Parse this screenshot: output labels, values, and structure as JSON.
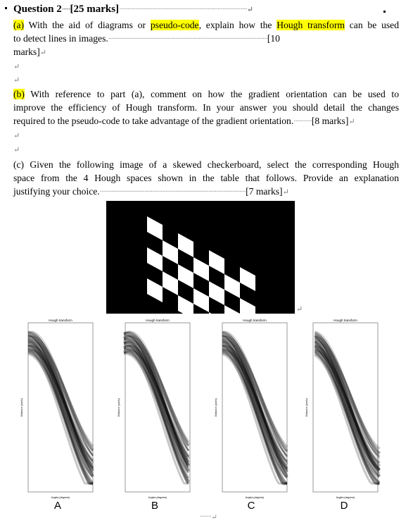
{
  "question": {
    "title": "Question 2",
    "marks": "[25 marks]"
  },
  "part_a": {
    "label": "(a)",
    "text_1": " With the aid of diagrams or ",
    "highlight_1": "pseudo-code",
    "text_2": ", explain how the ",
    "highlight_2": "Hough transform",
    "text_3": " can be used",
    "line2": "to detect lines in images.",
    "marks_a": "[10",
    "marks_b": "marks]"
  },
  "part_b": {
    "label": "(b)",
    "line1": " With reference to part (a), comment on how the gradient orientation can be used to",
    "line2": "improve the efficiency of Hough transform. In your answer you should detail the changes",
    "line3": "required to the pseudo-code to take advantage of the gradient orientation.",
    "marks": "[8 marks]"
  },
  "part_c": {
    "line1": "(c) Given the following image of a skewed checkerboard, select the corresponding Hough",
    "line2": "space from the 4 Hough spaces shown in the table that follows. Provide an explanation",
    "line3": "justifying your choice.",
    "marks": "[7 marks]"
  },
  "panels": [
    {
      "letter": "A",
      "plot_title": "Hough transform",
      "xlabel": "Angles (degrees)",
      "ylabel": "Distance (pixels)"
    },
    {
      "letter": "B",
      "plot_title": "Hough transform",
      "xlabel": "Angles (degrees)",
      "ylabel": "Distance (pixels)"
    },
    {
      "letter": "C",
      "plot_title": "Hough transform",
      "xlabel": "Angles (degrees)",
      "ylabel": "Distance (pixels)"
    },
    {
      "letter": "D",
      "plot_title": "Hough transform",
      "xlabel": "Angles (degrees)",
      "ylabel": "Distance (pixels)"
    }
  ],
  "marks_glyph": "↵"
}
